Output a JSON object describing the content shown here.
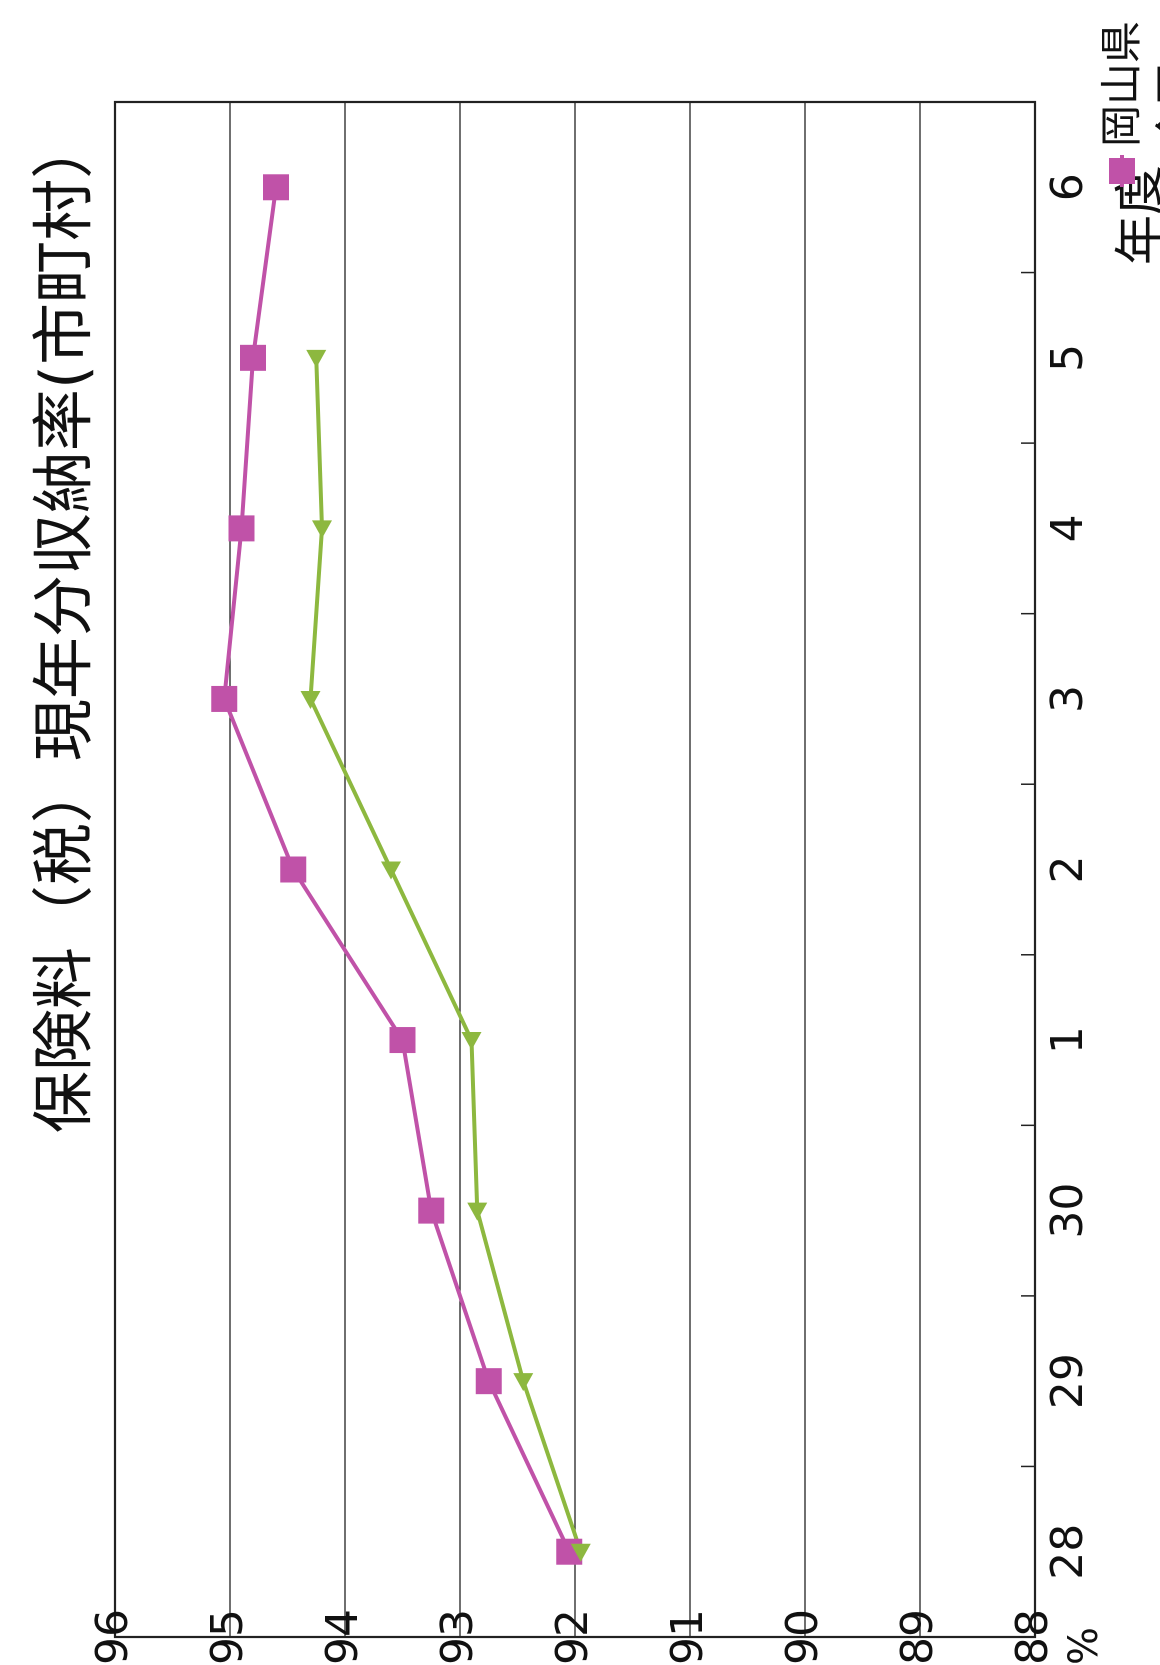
{
  "chart_data": {
    "type": "line",
    "title": "保険料（税）現年分収納率(市町村）",
    "ylabel": "%",
    "xlabel": "年度",
    "categories": [
      "28",
      "29",
      "30",
      "1",
      "2",
      "3",
      "4",
      "5",
      "6"
    ],
    "ylim": [
      88,
      96
    ],
    "yticks": [
      88,
      89,
      90,
      91,
      92,
      93,
      94,
      95,
      96
    ],
    "grid": true,
    "legend_position": "top-right",
    "series": [
      {
        "name": "岡山県",
        "marker": "square",
        "color": "#c052a8",
        "values": [
          92.05,
          92.75,
          93.25,
          93.5,
          94.45,
          95.05,
          94.9,
          94.8,
          94.6
        ]
      },
      {
        "name": "全国",
        "marker": "triangle",
        "color": "#8db83f",
        "values": [
          91.95,
          92.45,
          92.85,
          92.9,
          93.6,
          94.3,
          94.2,
          94.25,
          null
        ]
      }
    ]
  }
}
